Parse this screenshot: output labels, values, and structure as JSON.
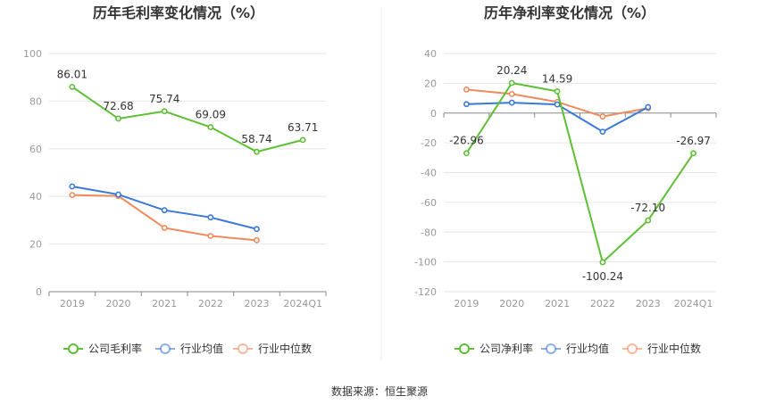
{
  "source_label": "数据来源：恒生聚源",
  "colors": {
    "company": "#5dbf33",
    "industry_avg": "#3a78d9",
    "industry_median": "#f08a5d",
    "grid": "#e6e6e6",
    "axis": "#888888"
  },
  "chart_data": [
    {
      "type": "line",
      "title": "历年毛利率变化情况（%）",
      "categories": [
        "2019",
        "2020",
        "2021",
        "2022",
        "2023",
        "2024Q1"
      ],
      "ylim": [
        0,
        100
      ],
      "yticks": [
        0,
        20,
        40,
        60,
        80,
        100
      ],
      "series": [
        {
          "key": "company",
          "name": "公司毛利率",
          "values": [
            86.01,
            72.68,
            75.74,
            69.09,
            58.74,
            63.71
          ],
          "labels": [
            "86.01",
            "72.68",
            "75.74",
            "69.09",
            "58.74",
            "63.71"
          ]
        },
        {
          "key": "industry_avg",
          "name": "行业均值",
          "values": [
            44.2,
            40.8,
            34.2,
            31.2,
            26.3,
            null
          ]
        },
        {
          "key": "industry_median",
          "name": "行业中位数",
          "values": [
            40.6,
            40.2,
            26.8,
            23.4,
            21.6,
            null
          ]
        }
      ]
    },
    {
      "type": "line",
      "title": "历年净利率变化情况（%）",
      "categories": [
        "2019",
        "2020",
        "2021",
        "2022",
        "2023",
        "2024Q1"
      ],
      "ylim": [
        -120,
        40
      ],
      "yticks": [
        -120,
        -100,
        -80,
        -60,
        -40,
        -20,
        0,
        20,
        40
      ],
      "series": [
        {
          "key": "company",
          "name": "公司净利率",
          "values": [
            -26.96,
            20.24,
            14.59,
            -100.24,
            -72.1,
            -26.97
          ],
          "labels": [
            "-26.96",
            "20.24",
            "14.59",
            "-100.24",
            "-72.10",
            "-26.97"
          ]
        },
        {
          "key": "industry_avg",
          "name": "行业均值",
          "values": [
            6.0,
            7.0,
            5.8,
            -12.5,
            4.0,
            null
          ]
        },
        {
          "key": "industry_median",
          "name": "行业中位数",
          "values": [
            15.8,
            12.8,
            7.5,
            -2.3,
            3.3,
            null
          ]
        }
      ]
    }
  ]
}
